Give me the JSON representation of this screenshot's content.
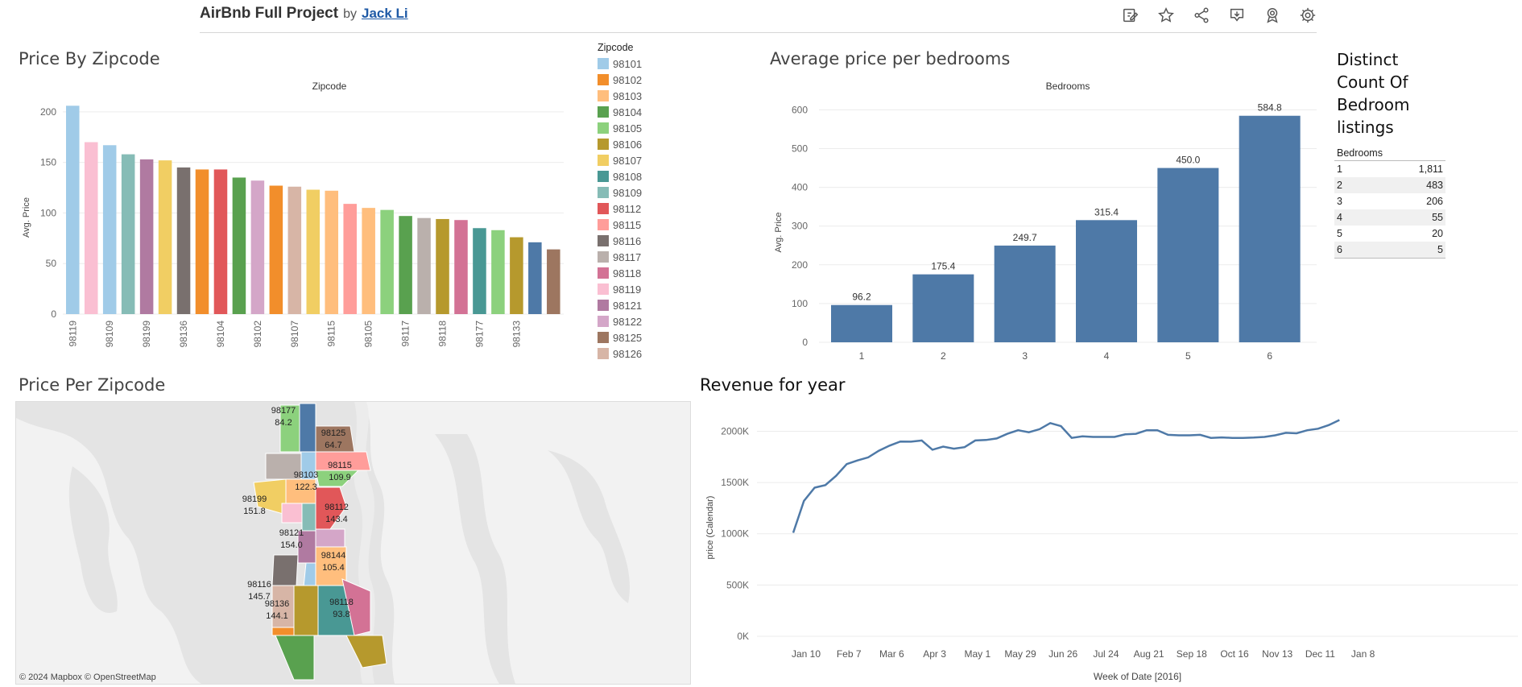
{
  "header": {
    "app_title": "AirBnb Full Project",
    "by": "by",
    "author": "Jack Li",
    "toolbar_icons": [
      "edit-icon",
      "star-icon",
      "share-icon",
      "download-icon",
      "badge-icon",
      "gear-icon"
    ]
  },
  "colors": {
    "bar_blue": "#4e79a7",
    "line_blue": "#4e79a7",
    "grid": "#e6e6e6",
    "map_bg": "#e6e6e6"
  },
  "price_by_zip": {
    "sheet_title": "Price By Zipcode",
    "chart_data": {
      "type": "bar",
      "header_label": "Zipcode",
      "ylabel": "Avg. Price",
      "ylim": [
        0,
        215
      ],
      "yticks": [
        "0",
        "50",
        "100",
        "150",
        "200"
      ],
      "x_tick_labels": [
        "98119",
        "98109",
        "98199",
        "98136",
        "98104",
        "98102",
        "98107",
        "98115",
        "98105",
        "98117",
        "98118",
        "98177",
        "98133"
      ],
      "values": [
        206,
        170,
        167,
        158,
        153,
        152,
        145,
        143,
        143,
        135,
        132,
        127,
        126,
        123,
        122,
        109,
        105,
        103,
        97,
        95,
        94,
        93,
        85,
        83,
        76,
        71,
        64
      ],
      "bar_colors": [
        "#a0cbe8",
        "#fabfd2",
        "#a0cbe8",
        "#86bcb6",
        "#b07aa1",
        "#f1ce63",
        "#79706e",
        "#f28e2b",
        "#e15759",
        "#59a14f",
        "#d4a6c8",
        "#f28e2b",
        "#d7b5a6",
        "#f1ce63",
        "#ffbe7d",
        "#ff9d9a",
        "#ffbe7d",
        "#8cd17d",
        "#59a14f",
        "#bab0ac",
        "#b6992d",
        "#d37295",
        "#499894",
        "#8cd17d",
        "#b6992d",
        "#4e79a7",
        "#9d7660"
      ]
    },
    "legend": {
      "title": "Zipcode",
      "items": [
        {
          "label": "98101",
          "color": "#a0cbe8"
        },
        {
          "label": "98102",
          "color": "#f28e2b"
        },
        {
          "label": "98103",
          "color": "#ffbe7d"
        },
        {
          "label": "98104",
          "color": "#59a14f"
        },
        {
          "label": "98105",
          "color": "#8cd17d"
        },
        {
          "label": "98106",
          "color": "#b6992d"
        },
        {
          "label": "98107",
          "color": "#f1ce63"
        },
        {
          "label": "98108",
          "color": "#499894"
        },
        {
          "label": "98109",
          "color": "#86bcb6"
        },
        {
          "label": "98112",
          "color": "#e15759"
        },
        {
          "label": "98115",
          "color": "#ff9d9a"
        },
        {
          "label": "98116",
          "color": "#79706e"
        },
        {
          "label": "98117",
          "color": "#bab0ac"
        },
        {
          "label": "98118",
          "color": "#d37295"
        },
        {
          "label": "98119",
          "color": "#fabfd2"
        },
        {
          "label": "98121",
          "color": "#b07aa1"
        },
        {
          "label": "98122",
          "color": "#d4a6c8"
        },
        {
          "label": "98125",
          "color": "#9d7660"
        },
        {
          "label": "98126",
          "color": "#d7b5a6"
        }
      ]
    }
  },
  "avg_price_bedrooms": {
    "sheet_title": "Average price per bedrooms",
    "chart_data": {
      "type": "bar",
      "header_label": "Bedrooms",
      "categories": [
        "1",
        "2",
        "3",
        "4",
        "5",
        "6"
      ],
      "values": [
        96.2,
        175.4,
        249.7,
        315.4,
        450.0,
        584.8
      ],
      "labels": [
        "96.2",
        "175.4",
        "249.7",
        "315.4",
        "450.0",
        "584.8"
      ],
      "ylabel": "Avg. Price",
      "ylim": [
        0,
        630
      ],
      "yticks": [
        "0",
        "100",
        "200",
        "300",
        "400",
        "500",
        "600"
      ],
      "color": "#4e79a7"
    }
  },
  "distinct_count": {
    "sheet_title_lines": [
      "Distinct",
      "Count Of",
      "Bedroom",
      "listings"
    ],
    "chart_data": {
      "type": "table",
      "column_header": "Bedrooms",
      "rows": [
        {
          "bedrooms": "1",
          "count": "1,811"
        },
        {
          "bedrooms": "2",
          "count": "483"
        },
        {
          "bedrooms": "3",
          "count": "206"
        },
        {
          "bedrooms": "4",
          "count": "55"
        },
        {
          "bedrooms": "5",
          "count": "20"
        },
        {
          "bedrooms": "6",
          "count": "5"
        }
      ]
    }
  },
  "price_per_zip_map": {
    "sheet_title": "Price Per Zipcode",
    "attribution": "© 2024 Mapbox  © OpenStreetMap",
    "labels": [
      {
        "zip": "98177",
        "value": "84.2"
      },
      {
        "zip": "98125",
        "value": "64.7"
      },
      {
        "zip": "98115",
        "value": "109.9"
      },
      {
        "zip": "98103",
        "value": "122.3"
      },
      {
        "zip": "98199",
        "value": "151.8"
      },
      {
        "zip": "98112",
        "value": "143.4"
      },
      {
        "zip": "98121",
        "value": "154.0"
      },
      {
        "zip": "98144",
        "value": "105.4"
      },
      {
        "zip": "98116",
        "value": "145.7"
      },
      {
        "zip": "98118",
        "value": "93.8"
      },
      {
        "zip": "98136",
        "value": "144.1"
      }
    ]
  },
  "revenue": {
    "sheet_title": "Revenue for year",
    "chart_data": {
      "type": "line",
      "xlabel": "Week of Date [2016]",
      "ylabel": "price (Calendar)",
      "ylim": [
        0,
        2200000
      ],
      "yticks": [
        "0K",
        "500K",
        "1000K",
        "1500K",
        "2000K"
      ],
      "x_tick_labels": [
        "Jan 10",
        "Feb 7",
        "Mar 6",
        "Apr 3",
        "May 1",
        "May 29",
        "Jun 26",
        "Jul 24",
        "Aug 21",
        "Sep 18",
        "Oct 16",
        "Nov 13",
        "Dec 11",
        "Jan 8"
      ],
      "series": [
        {
          "values": [
            1010000,
            1320000,
            1450000,
            1475000,
            1565000,
            1680000,
            1715000,
            1745000,
            1810000,
            1860000,
            1900000,
            1898000,
            1910000,
            1820000,
            1850000,
            1830000,
            1845000,
            1910000,
            1915000,
            1930000,
            1975000,
            2010000,
            1990000,
            2020000,
            2080000,
            2050000,
            1935000,
            1950000,
            1945000,
            1945000,
            1945000,
            1970000,
            1975000,
            2010000,
            2010000,
            1965000,
            1960000,
            1960000,
            1965000,
            1935000,
            1940000,
            1935000,
            1935000,
            1938000,
            1945000,
            1960000,
            1985000,
            1980000,
            2010000,
            2025000,
            2060000,
            2110000
          ]
        }
      ]
    }
  }
}
